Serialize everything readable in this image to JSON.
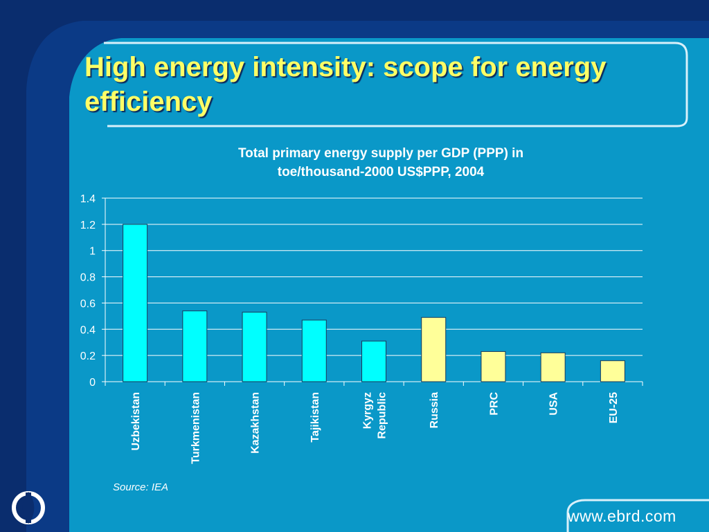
{
  "slide": {
    "title": "High energy intensity: scope for energy efficiency",
    "source": "Source: IEA",
    "website": "www.ebrd.com",
    "colors": {
      "background": "#0a98c8",
      "title": "#ffff66",
      "navy": "#0b3a86",
      "bar_cis": "#00ffff",
      "bar_other": "#ffff99"
    }
  },
  "chart_data": {
    "type": "bar",
    "title_lines": [
      "Total primary energy supply per GDP (PPP) in",
      "toe/thousand-2000 US$PPP, 2004"
    ],
    "categories": [
      [
        "Uzbekistan"
      ],
      [
        "Turkmenistan"
      ],
      [
        "Kazakhstan"
      ],
      [
        "Tajikistan"
      ],
      [
        "Kyrgyz",
        "Republic"
      ],
      [
        "Russia"
      ],
      [
        "PRC"
      ],
      [
        "USA"
      ],
      [
        "EU-25"
      ]
    ],
    "values": [
      1.2,
      0.54,
      0.53,
      0.47,
      0.31,
      0.49,
      0.23,
      0.22,
      0.16
    ],
    "bar_colors": [
      "#00ffff",
      "#00ffff",
      "#00ffff",
      "#00ffff",
      "#00ffff",
      "#ffff99",
      "#ffff99",
      "#ffff99",
      "#ffff99"
    ],
    "ylim": [
      0,
      1.4
    ],
    "yticks": [
      "0",
      "0.2",
      "0.4",
      "0.6",
      "0.8",
      "1",
      "1.2",
      "1.4"
    ],
    "grid": true,
    "xlabel": "",
    "ylabel": ""
  }
}
